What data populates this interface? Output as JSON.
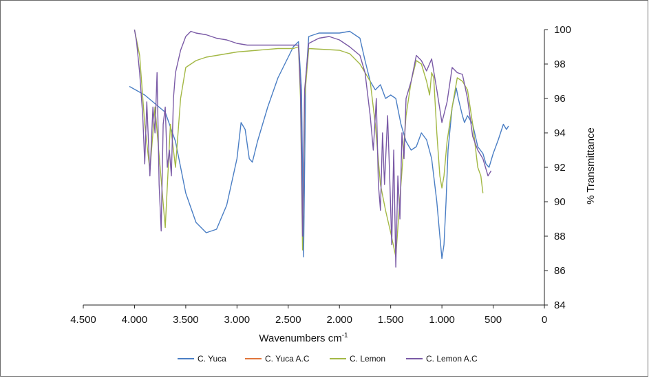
{
  "chart_data": {
    "type": "line",
    "xlabel_main": "Wavenumbers cm",
    "xlabel_sup": "-1",
    "ylabel": "% Transmittance",
    "xlim": [
      4500,
      0
    ],
    "ylim": [
      84,
      100
    ],
    "x_ticks": [
      {
        "value": 4500,
        "label": "4.500"
      },
      {
        "value": 4000,
        "label": "4.000"
      },
      {
        "value": 3500,
        "label": "3.500"
      },
      {
        "value": 3000,
        "label": "3.000"
      },
      {
        "value": 2500,
        "label": "2.500"
      },
      {
        "value": 2000,
        "label": "2.000"
      },
      {
        "value": 1500,
        "label": "1.500"
      },
      {
        "value": 1000,
        "label": "1.000"
      },
      {
        "value": 500,
        "label": "500"
      },
      {
        "value": 0,
        "label": "0"
      }
    ],
    "y_ticks": [
      {
        "value": 84,
        "label": "84"
      },
      {
        "value": 86,
        "label": "86"
      },
      {
        "value": 88,
        "label": "88"
      },
      {
        "value": 90,
        "label": "90"
      },
      {
        "value": 92,
        "label": "92"
      },
      {
        "value": 94,
        "label": "94"
      },
      {
        "value": 96,
        "label": "96"
      },
      {
        "value": 98,
        "label": "98"
      },
      {
        "value": 100,
        "label": "100"
      }
    ],
    "grid": false,
    "legend_position": "bottom",
    "series": [
      {
        "name": "C. Yuca",
        "color": "#4a7ec4",
        "points": [
          [
            4050,
            96.7
          ],
          [
            3900,
            96.2
          ],
          [
            3800,
            95.7
          ],
          [
            3700,
            95.2
          ],
          [
            3600,
            93.5
          ],
          [
            3500,
            90.5
          ],
          [
            3400,
            88.8
          ],
          [
            3300,
            88.2
          ],
          [
            3200,
            88.4
          ],
          [
            3100,
            89.8
          ],
          [
            3000,
            92.5
          ],
          [
            2960,
            94.6
          ],
          [
            2920,
            94.2
          ],
          [
            2880,
            92.5
          ],
          [
            2850,
            92.3
          ],
          [
            2800,
            93.5
          ],
          [
            2700,
            95.5
          ],
          [
            2600,
            97.2
          ],
          [
            2450,
            99.0
          ],
          [
            2400,
            99.3
          ],
          [
            2370,
            96.5
          ],
          [
            2350,
            86.8
          ],
          [
            2330,
            97.0
          ],
          [
            2300,
            99.6
          ],
          [
            2200,
            99.8
          ],
          [
            2000,
            99.8
          ],
          [
            1900,
            99.9
          ],
          [
            1800,
            99.5
          ],
          [
            1750,
            98.2
          ],
          [
            1700,
            97.0
          ],
          [
            1650,
            96.5
          ],
          [
            1600,
            96.8
          ],
          [
            1550,
            96.0
          ],
          [
            1500,
            96.2
          ],
          [
            1450,
            96.0
          ],
          [
            1400,
            94.5
          ],
          [
            1350,
            93.5
          ],
          [
            1300,
            93.0
          ],
          [
            1250,
            93.2
          ],
          [
            1200,
            94.0
          ],
          [
            1150,
            93.6
          ],
          [
            1100,
            92.5
          ],
          [
            1050,
            90.0
          ],
          [
            1020,
            88.0
          ],
          [
            1000,
            86.7
          ],
          [
            980,
            87.5
          ],
          [
            960,
            90.0
          ],
          [
            940,
            93.0
          ],
          [
            900,
            95.5
          ],
          [
            860,
            96.6
          ],
          [
            840,
            96.0
          ],
          [
            800,
            95.0
          ],
          [
            780,
            94.6
          ],
          [
            750,
            95.0
          ],
          [
            700,
            94.5
          ],
          [
            650,
            93.2
          ],
          [
            600,
            92.8
          ],
          [
            570,
            92.2
          ],
          [
            540,
            92.0
          ],
          [
            500,
            92.8
          ],
          [
            450,
            93.6
          ],
          [
            400,
            94.5
          ],
          [
            370,
            94.2
          ],
          [
            350,
            94.4
          ]
        ]
      },
      {
        "name": "C. Yuca A.C",
        "color": "#e0753a",
        "points": []
      },
      {
        "name": "C. Lemon",
        "color": "#a3b845",
        "points": [
          [
            4000,
            100.0
          ],
          [
            3950,
            98.5
          ],
          [
            3900,
            94.5
          ],
          [
            3850,
            91.8
          ],
          [
            3800,
            95.5
          ],
          [
            3750,
            92.0
          ],
          [
            3700,
            88.5
          ],
          [
            3650,
            94.5
          ],
          [
            3600,
            92.0
          ],
          [
            3550,
            96.0
          ],
          [
            3500,
            97.8
          ],
          [
            3400,
            98.2
          ],
          [
            3300,
            98.4
          ],
          [
            3200,
            98.5
          ],
          [
            3000,
            98.7
          ],
          [
            2800,
            98.8
          ],
          [
            2600,
            98.9
          ],
          [
            2450,
            98.9
          ],
          [
            2400,
            99.0
          ],
          [
            2380,
            96.0
          ],
          [
            2360,
            87.2
          ],
          [
            2340,
            96.0
          ],
          [
            2300,
            98.9
          ],
          [
            2000,
            98.8
          ],
          [
            1900,
            98.6
          ],
          [
            1800,
            98.0
          ],
          [
            1700,
            97.0
          ],
          [
            1650,
            94.5
          ],
          [
            1600,
            91.0
          ],
          [
            1550,
            89.5
          ],
          [
            1500,
            88.2
          ],
          [
            1450,
            86.8
          ],
          [
            1400,
            91.0
          ],
          [
            1350,
            95.0
          ],
          [
            1300,
            97.0
          ],
          [
            1250,
            98.2
          ],
          [
            1200,
            98.0
          ],
          [
            1150,
            97.0
          ],
          [
            1120,
            96.2
          ],
          [
            1100,
            97.5
          ],
          [
            1080,
            97.2
          ],
          [
            1050,
            94.0
          ],
          [
            1020,
            91.5
          ],
          [
            1000,
            90.8
          ],
          [
            980,
            91.5
          ],
          [
            950,
            93.5
          ],
          [
            900,
            95.5
          ],
          [
            850,
            97.2
          ],
          [
            800,
            97.0
          ],
          [
            750,
            96.5
          ],
          [
            700,
            94.5
          ],
          [
            650,
            92.0
          ],
          [
            620,
            91.5
          ],
          [
            600,
            90.5
          ]
        ]
      },
      {
        "name": "C. Lemon A.C",
        "color": "#7a5aa6",
        "points": [
          [
            4000,
            100.0
          ],
          [
            3980,
            99.3
          ],
          [
            3950,
            97.5
          ],
          [
            3920,
            95.0
          ],
          [
            3900,
            92.2
          ],
          [
            3880,
            95.8
          ],
          [
            3850,
            91.5
          ],
          [
            3820,
            95.5
          ],
          [
            3800,
            94.0
          ],
          [
            3780,
            97.5
          ],
          [
            3760,
            91.0
          ],
          [
            3740,
            88.3
          ],
          [
            3720,
            94.5
          ],
          [
            3700,
            95.5
          ],
          [
            3680,
            92.0
          ],
          [
            3660,
            93.0
          ],
          [
            3640,
            91.5
          ],
          [
            3620,
            96.0
          ],
          [
            3600,
            97.5
          ],
          [
            3550,
            98.8
          ],
          [
            3500,
            99.6
          ],
          [
            3450,
            99.9
          ],
          [
            3400,
            99.8
          ],
          [
            3300,
            99.7
          ],
          [
            3200,
            99.5
          ],
          [
            3100,
            99.4
          ],
          [
            3000,
            99.2
          ],
          [
            2900,
            99.1
          ],
          [
            2800,
            99.1
          ],
          [
            2700,
            99.1
          ],
          [
            2600,
            99.1
          ],
          [
            2450,
            99.1
          ],
          [
            2400,
            99.1
          ],
          [
            2380,
            96.5
          ],
          [
            2360,
            88.0
          ],
          [
            2340,
            96.5
          ],
          [
            2300,
            99.2
          ],
          [
            2200,
            99.5
          ],
          [
            2100,
            99.6
          ],
          [
            2000,
            99.4
          ],
          [
            1900,
            99.0
          ],
          [
            1800,
            98.5
          ],
          [
            1750,
            97.5
          ],
          [
            1700,
            95.0
          ],
          [
            1670,
            93.0
          ],
          [
            1640,
            96.0
          ],
          [
            1620,
            91.0
          ],
          [
            1600,
            89.5
          ],
          [
            1580,
            94.0
          ],
          [
            1560,
            91.0
          ],
          [
            1530,
            95.0
          ],
          [
            1510,
            91.5
          ],
          [
            1490,
            87.5
          ],
          [
            1470,
            93.0
          ],
          [
            1450,
            86.2
          ],
          [
            1430,
            91.5
          ],
          [
            1410,
            89.0
          ],
          [
            1390,
            94.0
          ],
          [
            1370,
            92.5
          ],
          [
            1350,
            96.0
          ],
          [
            1300,
            97.0
          ],
          [
            1250,
            98.5
          ],
          [
            1200,
            98.2
          ],
          [
            1150,
            97.6
          ],
          [
            1100,
            98.3
          ],
          [
            1050,
            96.5
          ],
          [
            1000,
            94.6
          ],
          [
            950,
            95.8
          ],
          [
            900,
            97.8
          ],
          [
            850,
            97.5
          ],
          [
            800,
            97.4
          ],
          [
            750,
            96.0
          ],
          [
            700,
            93.8
          ],
          [
            650,
            93.0
          ],
          [
            600,
            92.5
          ],
          [
            550,
            91.5
          ],
          [
            520,
            91.8
          ]
        ]
      }
    ]
  }
}
